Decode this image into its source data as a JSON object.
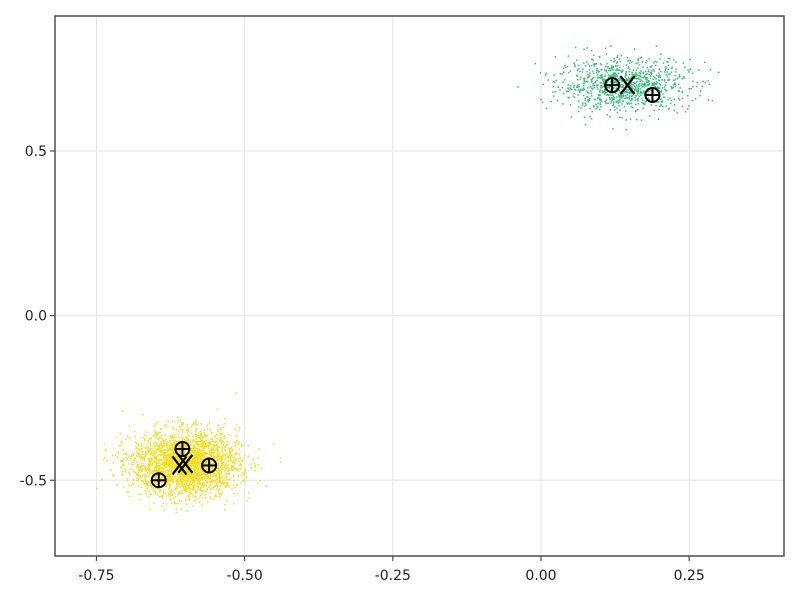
{
  "chart_data": {
    "type": "scatter",
    "title": "",
    "xlabel": "",
    "ylabel": "",
    "xlim": [
      -0.82,
      0.41
    ],
    "ylim": [
      -0.73,
      0.91
    ],
    "grid": true,
    "legend": "none",
    "x_ticks": [
      -0.75,
      -0.5,
      -0.25,
      0.0,
      0.25
    ],
    "x_tick_labels": [
      "-0.75",
      "-0.50",
      "-0.25",
      "0.00",
      "0.25"
    ],
    "y_ticks": [
      -0.5,
      0.0,
      0.5
    ],
    "y_tick_labels": [
      "-0.5",
      "0.0",
      "0.5"
    ],
    "series": [
      {
        "color": "#3dbb7f",
        "distribution": "gaussian",
        "n_points": 1000,
        "center": [
          0.14,
          0.7
        ],
        "spread": [
          0.055,
          0.04
        ]
      },
      {
        "color": "#f5dd19",
        "distribution": "gaussian",
        "n_points": 2500,
        "center": [
          -0.6,
          -0.45
        ],
        "spread": [
          0.045,
          0.05
        ]
      }
    ],
    "centroid_markers": [
      {
        "symbol": "circled-plus",
        "x": 0.12,
        "y": 0.7
      },
      {
        "symbol": "circled-plus",
        "x": 0.188,
        "y": 0.67
      },
      {
        "symbol": "x",
        "x": 0.146,
        "y": 0.7
      },
      {
        "symbol": "circled-plus",
        "x": -0.605,
        "y": -0.405
      },
      {
        "symbol": "circled-plus",
        "x": -0.56,
        "y": -0.455
      },
      {
        "symbol": "circled-plus",
        "x": -0.645,
        "y": -0.5
      },
      {
        "symbol": "x",
        "x": -0.61,
        "y": -0.455
      },
      {
        "symbol": "x",
        "x": -0.6,
        "y": -0.45
      }
    ]
  }
}
